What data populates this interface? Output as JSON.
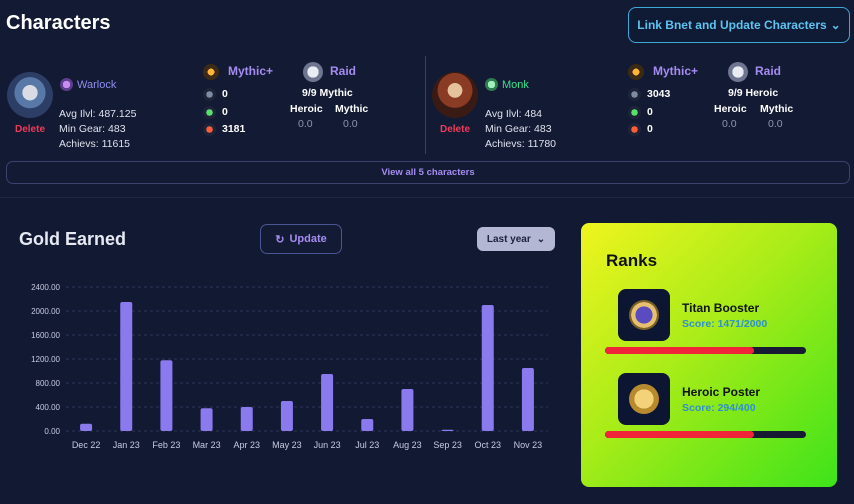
{
  "header": {
    "title": "Characters",
    "link_button": "Link Bnet and Update Characters"
  },
  "characters": [
    {
      "class": "Warlock",
      "class_color": "#8f8ef0",
      "delete_label": "Delete",
      "avg_ilvl": "Avg Ilvl: 487.125",
      "min_gear": "Min Gear: 483",
      "achievs": "Achievs: 11615",
      "mythic_label": "Mythic+",
      "mythic_tank": "0",
      "mythic_heal": "0",
      "mythic_dps": "3181",
      "raid_label": "Raid",
      "raid_progress": "9/9 Mythic",
      "heroic_label": "Heroic",
      "heroic_value": "0.0",
      "mythic_col_label": "Mythic",
      "mythic_value": "0.0"
    },
    {
      "class": "Monk",
      "class_color": "#34e38f",
      "delete_label": "Delete",
      "avg_ilvl": "Avg Ilvl: 484",
      "min_gear": "Min Gear: 483",
      "achievs": "Achievs: 11780",
      "mythic_label": "Mythic+",
      "mythic_tank": "3043",
      "mythic_heal": "0",
      "mythic_dps": "0",
      "raid_label": "Raid",
      "raid_progress": "9/9 Heroic",
      "heroic_label": "Heroic",
      "heroic_value": "0.0",
      "mythic_col_label": "Mythic",
      "mythic_value": "0.0"
    }
  ],
  "view_all": "View all 5 characters",
  "gold": {
    "title": "Gold Earned",
    "update_label": "Update",
    "period": "Last year"
  },
  "chart_data": {
    "type": "bar",
    "categories": [
      "Dec 22",
      "Jan 23",
      "Feb 23",
      "Mar 23",
      "Apr 23",
      "May 23",
      "Jun 23",
      "Jul 23",
      "Aug 23",
      "Sep 23",
      "Oct 23",
      "Nov 23"
    ],
    "values": [
      120,
      2150,
      1180,
      380,
      400,
      500,
      950,
      200,
      700,
      20,
      2100,
      1050
    ],
    "ylim": [
      0,
      2400
    ],
    "yticks": [
      "0.00",
      "400.00",
      "800.00",
      "1200.00",
      "1600.00",
      "2000.00",
      "2400.00"
    ],
    "title": "",
    "xlabel": "",
    "ylabel": "",
    "grid": true,
    "bar_color": "#8b79ee"
  },
  "ranks": {
    "title": "Ranks",
    "items": [
      {
        "name": "Titan Booster",
        "score": "Score: 1471/2000",
        "progress": 0.74
      },
      {
        "name": "Heroic Poster",
        "score": "Score: 294/400",
        "progress": 0.74
      }
    ]
  }
}
